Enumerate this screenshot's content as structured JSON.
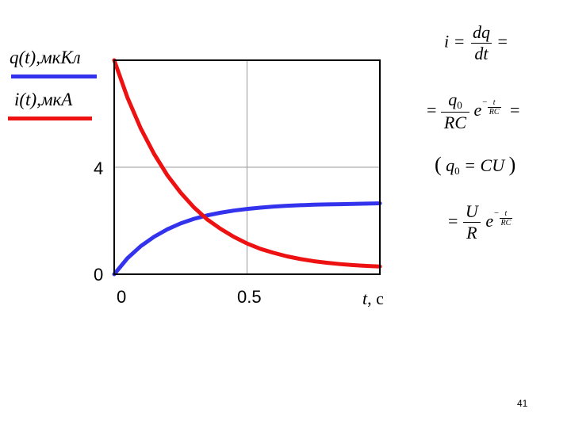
{
  "legend": {
    "q_label": "q(t),мкКл",
    "i_label": "i(t),мкА"
  },
  "axes": {
    "y_ticks": [
      "0",
      "4"
    ],
    "x_ticks": [
      "0",
      "0.5"
    ],
    "x_unit_var": "t",
    "x_unit_rest": ", с"
  },
  "formulas": {
    "eq1_lhs": "i =",
    "eq1_num": "dq",
    "eq1_den": "dt",
    "eq1_rhs": "=",
    "eq2_lhs": "=",
    "eq2_num": "q",
    "eq2_num_sub": "0",
    "eq2_den": "RC",
    "eq2_e": "e",
    "eq2_exp_sign": "−",
    "eq2_exp_num": "t",
    "eq2_exp_den": "RC",
    "eq2_rhs": "=",
    "eq3_open": "(",
    "eq3_q": "q",
    "eq3_sub": "0",
    "eq3_rest": " = CU",
    "eq3_close": ")",
    "eq4_lhs": "=",
    "eq4_num": "U",
    "eq4_den": "R",
    "eq4_e": "e",
    "eq4_exp_sign": "−",
    "eq4_exp_num": "t",
    "eq4_exp_den": "RC"
  },
  "page_number": "41",
  "chart_data": {
    "type": "line",
    "x": [
      0,
      0.05,
      0.1,
      0.15,
      0.2,
      0.25,
      0.3,
      0.35,
      0.4,
      0.45,
      0.5,
      0.55,
      0.6,
      0.65,
      0.7,
      0.75,
      0.8,
      0.85,
      0.9,
      0.95,
      1.0
    ],
    "series": [
      {
        "name": "q(t),мкКл",
        "color": "#3333ee",
        "values": [
          0.0,
          0.6,
          1.05,
          1.4,
          1.68,
          1.9,
          2.07,
          2.2,
          2.3,
          2.38,
          2.44,
          2.49,
          2.53,
          2.56,
          2.58,
          2.6,
          2.61,
          2.62,
          2.63,
          2.64,
          2.65
        ]
      },
      {
        "name": "i(t),мкА",
        "color": "#ee1111",
        "values": [
          8.0,
          6.6,
          5.45,
          4.5,
          3.7,
          3.05,
          2.5,
          2.05,
          1.7,
          1.4,
          1.15,
          0.95,
          0.8,
          0.67,
          0.57,
          0.49,
          0.43,
          0.38,
          0.34,
          0.31,
          0.29
        ]
      }
    ],
    "xlim": [
      0,
      1.0
    ],
    "ylim": [
      0,
      8
    ],
    "x_ticks": [
      0,
      0.5
    ],
    "y_ticks": [
      0,
      4
    ],
    "xlabel": "t, с",
    "grid": true
  }
}
